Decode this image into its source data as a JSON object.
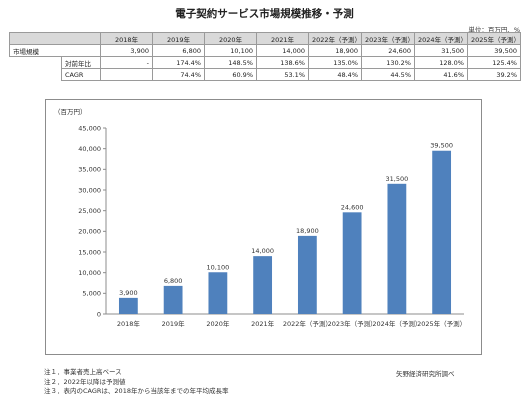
{
  "title": "電子契約サービス市場規模推移・予測",
  "unit_note": "単位：百万円、%",
  "table": {
    "headers": [
      "",
      "",
      "2018年",
      "2019年",
      "2020年",
      "2021年",
      "2022年（予測）",
      "2023年（予測）",
      "2024年（予測）",
      "2025年（予測）"
    ],
    "rows": [
      {
        "label": "市場規模",
        "sublabel": "",
        "values": [
          "3,900",
          "6,800",
          "10,100",
          "14,000",
          "18,900",
          "24,600",
          "31,500",
          "39,500"
        ]
      },
      {
        "label": "",
        "sublabel": "対前年比",
        "values": [
          "-",
          "174.4%",
          "148.5%",
          "138.6%",
          "135.0%",
          "130.2%",
          "128.0%",
          "125.4%"
        ]
      },
      {
        "label": "",
        "sublabel": "CAGR",
        "values": [
          "",
          "74.4%",
          "60.9%",
          "53.1%",
          "48.4%",
          "44.5%",
          "41.6%",
          "39.2%"
        ]
      }
    ]
  },
  "chart_data": {
    "type": "bar",
    "title": "",
    "ylabel": "（百万円）",
    "xlabel": "",
    "categories": [
      "2018年",
      "2019年",
      "2020年",
      "2021年",
      "2022年（予測）",
      "2023年（予測）",
      "2024年（予測）",
      "2025年（予測）"
    ],
    "values": [
      3900,
      6800,
      10100,
      14000,
      18900,
      24600,
      31500,
      39500
    ],
    "data_labels": [
      "3,900",
      "6,800",
      "10,100",
      "14,000",
      "18,900",
      "24,600",
      "31,500",
      "39,500"
    ],
    "ylim": [
      0,
      45000
    ],
    "yticks": [
      0,
      5000,
      10000,
      15000,
      20000,
      25000,
      30000,
      35000,
      40000,
      45000
    ],
    "ytick_labels": [
      "0",
      "5,000",
      "10,000",
      "15,000",
      "20,000",
      "25,000",
      "30,000",
      "35,000",
      "40,000",
      "45,000"
    ],
    "grid": false,
    "bar_color": "#4f81bd"
  },
  "notes": [
    "注１．事業者売上高ベース",
    "注２．2022年以降は予測値",
    "注３．表内のCAGRは、2018年から当該年までの年平均成長率"
  ],
  "source": "矢野経済研究所調べ"
}
